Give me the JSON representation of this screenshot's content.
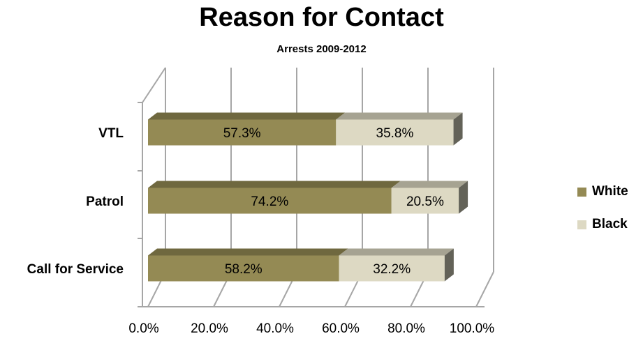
{
  "chart_data": {
    "type": "bar",
    "orientation": "horizontal",
    "stacked": true,
    "three_d": true,
    "title": "Reason for Contact",
    "subtitle": "Arrests 2009-2012",
    "categories": [
      "VTL",
      "Patrol",
      "Call for Service"
    ],
    "series": [
      {
        "name": "White",
        "values": [
          57.3,
          74.2,
          58.2
        ],
        "labels": [
          "57.3%",
          "74.2%",
          "58.2%"
        ],
        "color": "#948a54"
      },
      {
        "name": "Black",
        "values": [
          35.8,
          20.5,
          32.2
        ],
        "labels": [
          "35.8%",
          "20.5%",
          "32.2%"
        ],
        "color": "#ddd9c3"
      }
    ],
    "xlim": [
      0,
      100
    ],
    "x_ticks": [
      "0.0%",
      "20.0%",
      "40.0%",
      "60.0%",
      "80.0%",
      "100.0%"
    ],
    "grid": true,
    "legend_position": "right"
  }
}
